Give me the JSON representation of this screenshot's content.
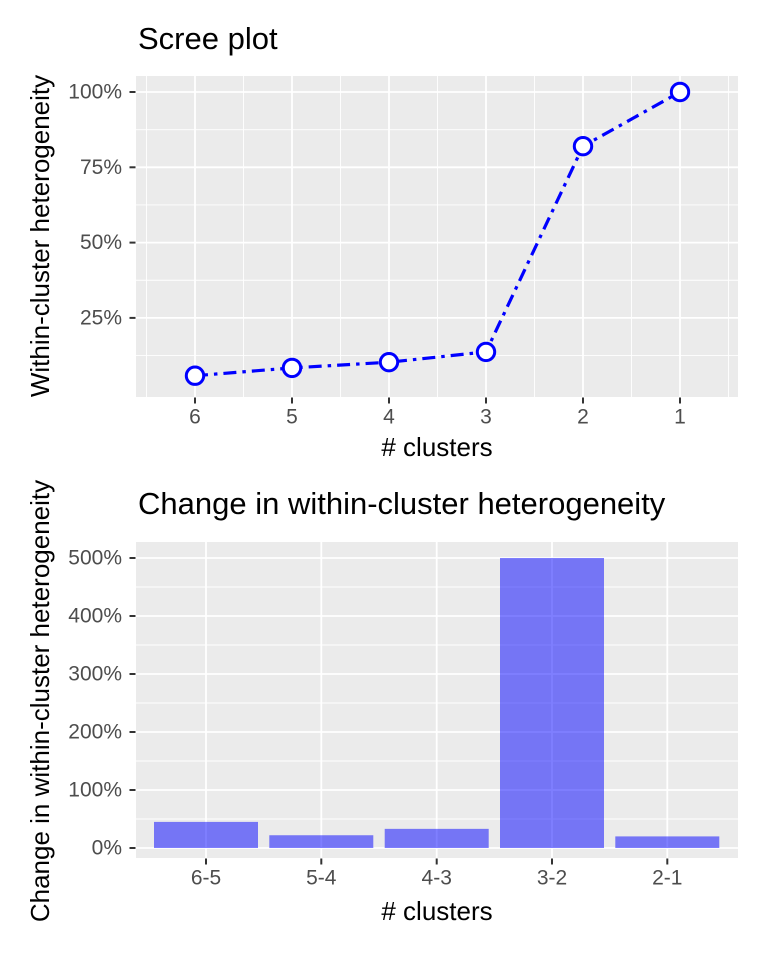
{
  "figure": {
    "background": "#FFFFFF"
  },
  "colors": {
    "panel_background": "#EBEBEB",
    "gridline": "#FFFFFF",
    "tick_label": "#4D4D4D",
    "tick_mark": "#333333",
    "title_text": "#000000",
    "line_blue": "#0000FF",
    "marker_fill": "#FFFFFF",
    "bar_fill": "rgba(0,0,255,0.5)"
  },
  "chart_data": [
    {
      "id": "scree",
      "type": "line",
      "title": "Scree plot",
      "xlabel": "# clusters",
      "ylabel": "Within-cluster heterogeneity",
      "x": [
        6,
        5,
        4,
        3,
        2,
        1
      ],
      "x_tick_labels": [
        "6",
        "5",
        "4",
        "3",
        "2",
        "1"
      ],
      "x_reversed": true,
      "values_pct": [
        5.8,
        8.4,
        10.3,
        13.7,
        82,
        100
      ],
      "y_ticks": [
        {
          "value": 25,
          "label": "25%"
        },
        {
          "value": 50,
          "label": "50%"
        },
        {
          "value": 75,
          "label": "75%"
        },
        {
          "value": 100,
          "label": "100%"
        }
      ],
      "y_minor_ticks": [
        12.5,
        37.5,
        62.5,
        87.5
      ],
      "ylim": [
        0,
        105
      ],
      "grid": true,
      "legend": "none",
      "line_style": "dash-dot",
      "marker": "open-circle",
      "line_color": "#0000FF"
    },
    {
      "id": "change",
      "type": "bar",
      "title": "Change in within-cluster heterogeneity",
      "xlabel": "# clusters",
      "ylabel": "Change in within-cluster heterogeneity",
      "categories": [
        "6-5",
        "5-4",
        "4-3",
        "3-2",
        "2-1"
      ],
      "values_pct": [
        45,
        22,
        33,
        500,
        20
      ],
      "y_ticks": [
        {
          "value": 0,
          "label": "0%"
        },
        {
          "value": 100,
          "label": "100%"
        },
        {
          "value": 200,
          "label": "200%"
        },
        {
          "value": 300,
          "label": "300%"
        },
        {
          "value": 400,
          "label": "400%"
        },
        {
          "value": 500,
          "label": "500%"
        }
      ],
      "y_minor_ticks": [
        50,
        150,
        250,
        350,
        450
      ],
      "ylim": [
        0,
        500
      ],
      "grid": true,
      "legend": "none",
      "bar_color": "rgba(0,0,255,0.5)"
    }
  ]
}
